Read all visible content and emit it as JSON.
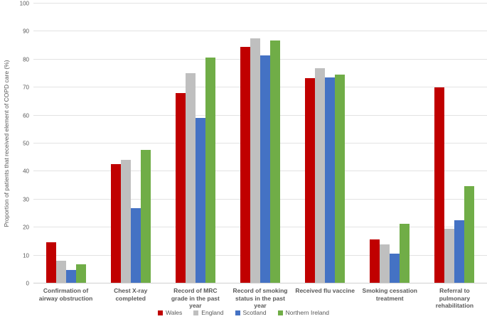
{
  "chart_data": {
    "type": "bar",
    "title": "",
    "xlabel": "",
    "ylabel": "Proportion of patients that received element of COPD care (%)",
    "ylim": [
      0,
      100
    ],
    "yticks": [
      0,
      10,
      20,
      30,
      40,
      50,
      60,
      70,
      80,
      90,
      100
    ],
    "grid": true,
    "legend_position": "bottom",
    "categories": [
      "Confirmation of airway obstruction",
      "Chest X-ray completed",
      "Record of MRC grade in the past year",
      "Record of smoking status in the past year",
      "Received flu vaccine",
      "Smoking cessation treatment",
      "Referral to pulmonary rehabilitation"
    ],
    "series": [
      {
        "name": "Wales",
        "color": "#c00000",
        "values": [
          14.5,
          42.5,
          68.0,
          84.6,
          73.2,
          15.4,
          70.0
        ]
      },
      {
        "name": "England",
        "color": "#bfbfbf",
        "values": [
          8.0,
          44.0,
          75.0,
          87.5,
          76.8,
          13.8,
          19.3
        ]
      },
      {
        "name": "Scotland",
        "color": "#4472c4",
        "values": [
          4.7,
          26.8,
          59.0,
          81.4,
          73.5,
          10.5,
          22.4
        ]
      },
      {
        "name": "Northern Ireland",
        "color": "#70ad47",
        "values": [
          6.5,
          47.6,
          80.6,
          86.8,
          74.5,
          21.0,
          34.5
        ]
      }
    ]
  }
}
